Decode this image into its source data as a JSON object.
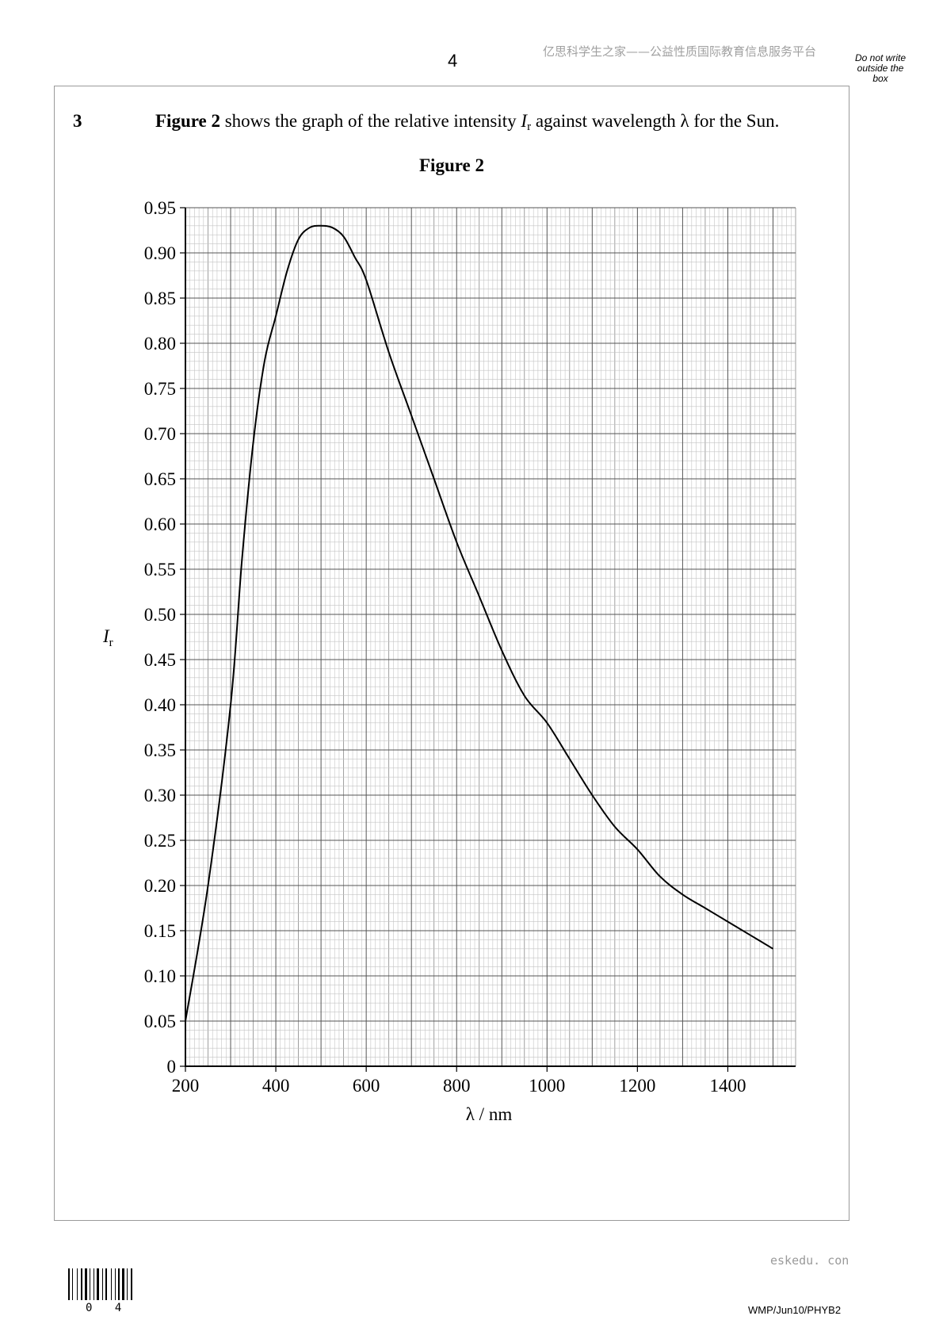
{
  "header": {
    "page_number": "4",
    "watermark": "亿思科学生之家——公益性质国际教育信息服务平台",
    "margin_note": [
      "Do not write",
      "outside the",
      "box"
    ]
  },
  "question": {
    "number": "3",
    "text_bold": "Figure 2",
    "text_1": " shows the graph of the relative intensity ",
    "symbol": "I",
    "symbol_sub": "r",
    "text_2": " against wavelength λ for the Sun."
  },
  "figure": {
    "caption": "Figure 2"
  },
  "chart_data": {
    "type": "line",
    "title": "",
    "xlabel": "λ / nm",
    "ylabel_symbol": "I",
    "ylabel_sub": "r",
    "xlim": [
      200,
      1550
    ],
    "ylim": [
      0,
      0.95
    ],
    "x_ticks": [
      200,
      400,
      600,
      800,
      1000,
      1200,
      1400
    ],
    "y_ticks": [
      "0",
      "0.05",
      "0.10",
      "0.15",
      "0.20",
      "0.25",
      "0.30",
      "0.35",
      "0.40",
      "0.45",
      "0.50",
      "0.55",
      "0.60",
      "0.65",
      "0.70",
      "0.75",
      "0.80",
      "0.85",
      "0.90",
      "0.95"
    ],
    "grid": true,
    "series": [
      {
        "x": [
          200,
          250,
          300,
          325,
          350,
          375,
          400,
          425,
          450,
          475,
          500,
          525,
          550,
          575,
          600,
          650,
          700,
          750,
          800,
          850,
          900,
          950,
          1000,
          1050,
          1100,
          1150,
          1200,
          1250,
          1300,
          1350,
          1400,
          1450,
          1500
        ],
        "y": [
          0.05,
          0.2,
          0.4,
          0.56,
          0.69,
          0.78,
          0.83,
          0.88,
          0.915,
          0.928,
          0.93,
          0.928,
          0.918,
          0.895,
          0.87,
          0.79,
          0.72,
          0.65,
          0.58,
          0.52,
          0.46,
          0.41,
          0.38,
          0.34,
          0.3,
          0.265,
          0.24,
          0.21,
          0.19,
          0.175,
          0.16,
          0.145,
          0.13
        ]
      }
    ]
  },
  "footer": {
    "site": "eskedu. con",
    "code": "WMP/Jun10/PHYB2",
    "barcode_digits": "0 4"
  }
}
